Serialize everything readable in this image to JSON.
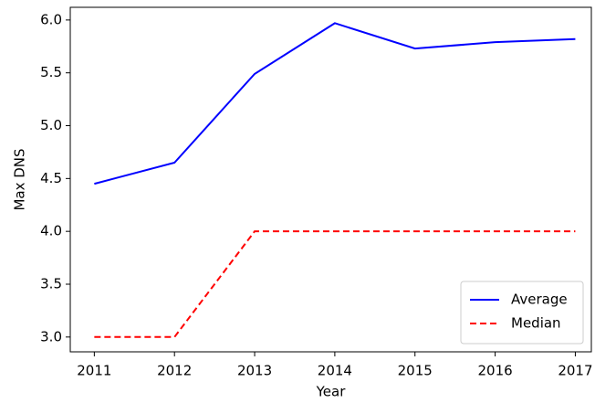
{
  "chart_data": {
    "type": "line",
    "x_label": "Year",
    "y_label": "Max DNS",
    "x": [
      2011,
      2012,
      2013,
      2014,
      2015,
      2016,
      2017
    ],
    "series": [
      {
        "name": "Average",
        "color": "#0000ff",
        "linestyle": "solid",
        "values": [
          4.45,
          4.65,
          5.49,
          5.97,
          5.73,
          5.79,
          5.82
        ]
      },
      {
        "name": "Median",
        "color": "#ff0000",
        "linestyle": "dashed",
        "values": [
          3.0,
          3.0,
          4.0,
          4.0,
          4.0,
          4.0,
          4.0
        ]
      }
    ],
    "xlim": [
      2010.7,
      2017.2
    ],
    "ylim": [
      2.86,
      6.12
    ],
    "xticks": [
      2011,
      2012,
      2013,
      2014,
      2015,
      2016,
      2017
    ],
    "yticks": [
      {
        "value": 3.0,
        "label": "3.0"
      },
      {
        "value": 3.5,
        "label": "3.5"
      },
      {
        "value": 4.0,
        "label": "4.0"
      },
      {
        "value": 4.5,
        "label": "4.5"
      },
      {
        "value": 5.0,
        "label": "5.0"
      },
      {
        "value": 5.5,
        "label": "5.5"
      },
      {
        "value": 6.0,
        "label": "6.0"
      }
    ],
    "grid": false,
    "legend": "lower right"
  }
}
